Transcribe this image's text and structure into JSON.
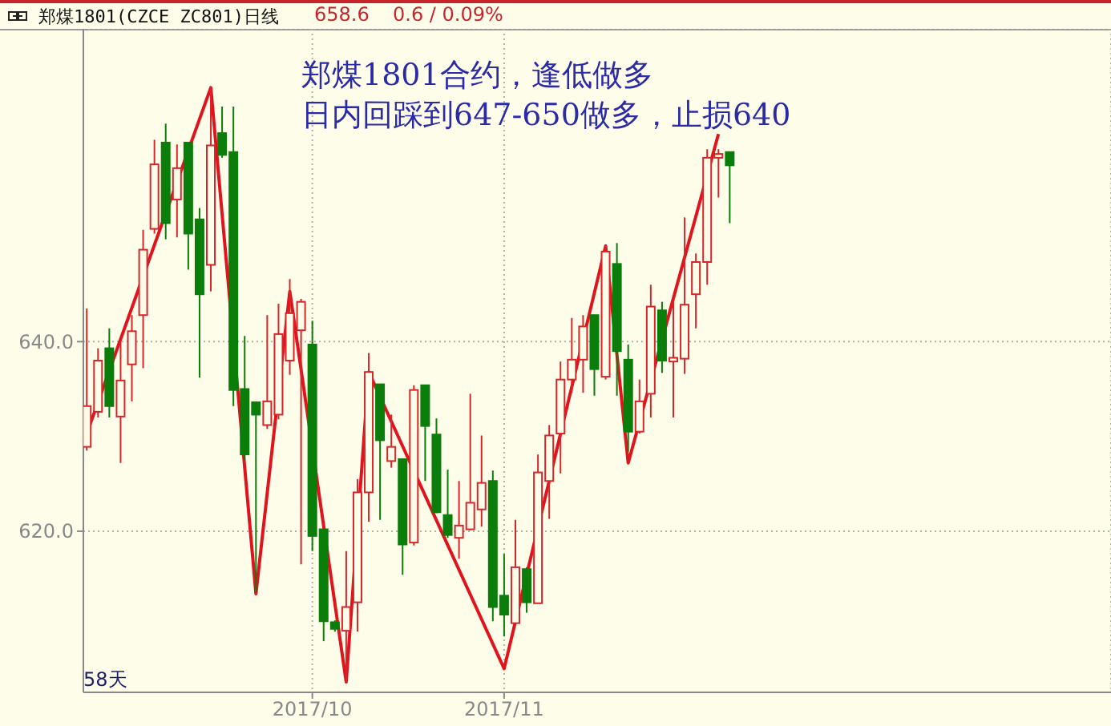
{
  "chart_data": {
    "type": "candlestick",
    "title": "郑煤1801(CZCE ZC801)日线",
    "annotations": [
      "郑煤1801合约，逢低做多",
      "日内回踩到647-650做多，止损640",
      "58天",
      "658.6",
      "0.6 / 0.09%"
    ],
    "categories": [
      null,
      null,
      null,
      null,
      null,
      null,
      null,
      null,
      null,
      null,
      null,
      null,
      null,
      null,
      null,
      null,
      null,
      null,
      null,
      null,
      "2017/10",
      null,
      null,
      null,
      null,
      null,
      null,
      null,
      null,
      null,
      null,
      null,
      null,
      null,
      null,
      null,
      null,
      "2017/11",
      null,
      null,
      null,
      null,
      null,
      null,
      null,
      null,
      null,
      null,
      null,
      null,
      null,
      null,
      null,
      null,
      null,
      null,
      null,
      null
    ],
    "ohlc": [
      [
        628.9,
        643.5,
        628.5,
        633.2
      ],
      [
        632.6,
        639.3,
        632.0,
        638.0
      ],
      [
        639.3,
        641.4,
        632.0,
        633.2
      ],
      [
        632.1,
        640.0,
        627.2,
        635.9
      ],
      [
        637.6,
        642.8,
        633.7,
        641.1
      ],
      [
        642.8,
        651.8,
        637.2,
        649.7
      ],
      [
        651.9,
        661.3,
        651.4,
        658.7
      ],
      [
        661.0,
        663.0,
        650.8,
        652.5
      ],
      [
        655.0,
        660.8,
        651.0,
        658.3
      ],
      [
        661.0,
        661.0,
        647.6,
        651.4
      ],
      [
        652.9,
        654.1,
        636.2,
        645.0
      ],
      [
        648.1,
        666.8,
        645.3,
        660.7
      ],
      [
        662.0,
        664.8,
        659.4,
        659.7
      ],
      [
        660.0,
        664.8,
        633.2,
        634.9
      ],
      [
        635.0,
        640.6,
        627.5,
        628.1
      ],
      [
        633.6,
        633.7,
        613.6,
        632.3
      ],
      [
        631.2,
        642.8,
        630.8,
        633.7
      ],
      [
        632.3,
        644.0,
        631.8,
        640.8
      ],
      [
        638.0,
        646.6,
        636.5,
        643.0
      ],
      [
        641.2,
        644.5,
        616.5,
        644.2
      ],
      [
        639.7,
        642.2,
        617.9,
        619.5
      ],
      [
        620.2,
        620.2,
        608.4,
        610.5
      ],
      [
        610.4,
        610.6,
        609.4,
        609.7
      ],
      [
        609.5,
        617.9,
        604.1,
        612.0
      ],
      [
        612.5,
        625.5,
        609.4,
        624.1
      ],
      [
        624.1,
        638.8,
        621.0,
        636.8
      ],
      [
        635.5,
        635.5,
        621.2,
        629.6
      ],
      [
        627.4,
        632.3,
        626.7,
        628.9
      ],
      [
        627.6,
        627.6,
        615.4,
        618.6
      ],
      [
        618.8,
        635.4,
        618.5,
        634.9
      ],
      [
        635.4,
        635.4,
        625.3,
        631.1
      ],
      [
        630.2,
        631.9,
        621.9,
        622.0
      ],
      [
        621.7,
        626.5,
        619.3,
        619.6
      ],
      [
        619.3,
        625.3,
        617.1,
        620.6
      ],
      [
        620.2,
        634.5,
        620.1,
        623.0
      ],
      [
        622.3,
        630.1,
        620.5,
        625.1
      ],
      [
        625.3,
        626.4,
        610.5,
        612.0
      ],
      [
        613.2,
        617.6,
        608.9,
        611.2
      ],
      [
        610.3,
        621.2,
        610.3,
        616.2
      ],
      [
        616.0,
        616.2,
        611.4,
        612.5
      ],
      [
        612.4,
        628.1,
        612.4,
        626.2
      ],
      [
        625.3,
        631.2,
        621.3,
        630.1
      ],
      [
        630.3,
        637.9,
        626.1,
        636.0
      ],
      [
        636.0,
        642.5,
        634.6,
        638.1
      ],
      [
        638.1,
        642.8,
        634.6,
        641.6
      ],
      [
        642.8,
        642.8,
        634.3,
        637.1
      ],
      [
        636.3,
        650.1,
        636.0,
        649.5
      ],
      [
        648.2,
        650.4,
        634.3,
        639.0
      ],
      [
        638.1,
        639.7,
        628.4,
        630.5
      ],
      [
        630.5,
        636.0,
        630.3,
        633.7
      ],
      [
        634.5,
        646.0,
        632.0,
        643.7
      ],
      [
        643.3,
        644.2,
        636.7,
        638.0
      ],
      [
        637.9,
        644.2,
        632.0,
        638.3
      ],
      [
        638.2,
        653.1,
        636.6,
        643.9
      ],
      [
        645.0,
        649.3,
        641.4,
        648.4
      ],
      [
        648.4,
        660.3,
        646.0,
        659.4
      ],
      [
        659.4,
        660.3,
        655.2,
        659.8
      ],
      [
        660.0,
        660.0,
        652.5,
        658.6
      ]
    ],
    "colors": [
      "#d7262b",
      "#d7262b",
      "#0b7d0b",
      "#d7262b",
      "#d7262b",
      "#d7262b",
      "#d7262b",
      "#0b7d0b",
      "#d7262b",
      "#0b7d0b",
      "#0b7d0b",
      "#d7262b",
      "#0b7d0b",
      "#0b7d0b",
      "#0b7d0b",
      "#0b7d0b",
      "#d7262b",
      "#d7262b",
      "#d7262b",
      "#d7262b",
      "#0b7d0b",
      "#0b7d0b",
      "#0b7d0b",
      "#d7262b",
      "#d7262b",
      "#d7262b",
      "#0b7d0b",
      "#d7262b",
      "#0b7d0b",
      "#d7262b",
      "#0b7d0b",
      "#0b7d0b",
      "#0b7d0b",
      "#d7262b",
      "#d7262b",
      "#d7262b",
      "#0b7d0b",
      "#0b7d0b",
      "#d7262b",
      "#0b7d0b",
      "#d7262b",
      "#d7262b",
      "#d7262b",
      "#d7262b",
      "#d7262b",
      "#0b7d0b",
      "#d7262b",
      "#0b7d0b",
      "#0b7d0b",
      "#d7262b",
      "#d7262b",
      "#0b7d0b",
      "#d7262b",
      "#d7262b",
      "#d7262b",
      "#d7262b",
      "#d7262b",
      "#0b7d0b"
    ],
    "series": [
      {
        "type": "line",
        "values": [
          630.3,
          null,
          null,
          null,
          null,
          null,
          null,
          null,
          null,
          null,
          null,
          666.8,
          null,
          null,
          null,
          613.4,
          null,
          null,
          645.3,
          null,
          null,
          null,
          null,
          604.1,
          null,
          636.8,
          null,
          null,
          null,
          null,
          null,
          null,
          null,
          null,
          null,
          null,
          null,
          605.5,
          null,
          null,
          null,
          null,
          null,
          null,
          null,
          null,
          650.1,
          null,
          627.2,
          null,
          null,
          null,
          null,
          null,
          null,
          null,
          661.9,
          null
        ],
        "color": "#e0141e"
      }
    ],
    "ylim": [
      603,
      673
    ],
    "yticks": [
      {
        "value": 620,
        "label": "620.0"
      },
      {
        "value": 640,
        "label": "640.0"
      }
    ],
    "grid": true
  }
}
